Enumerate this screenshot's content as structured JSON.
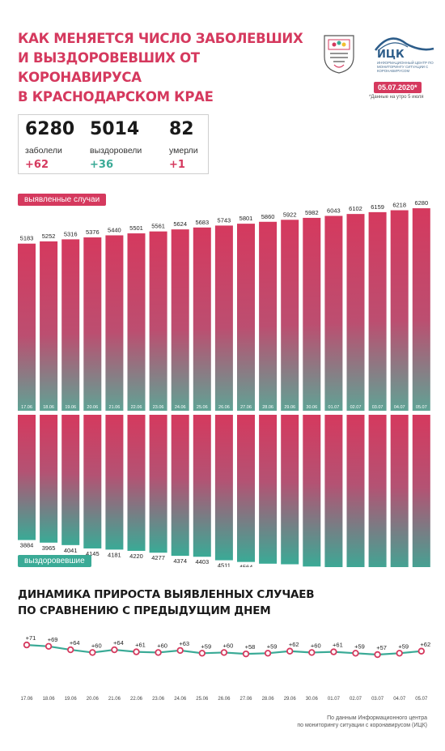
{
  "header": {
    "title_lines": [
      "Как меняется число заболевших",
      "и выздоровевших от коронавируса",
      "в Краснодарском крае"
    ],
    "logo_name": "ИЦК",
    "logo_subtitle": "Информационный центр по мониторингу ситуации с коронавирусом",
    "date": "05.07.2020*",
    "date_note": "*Данные на утро 5 июля"
  },
  "stats": {
    "cases": {
      "value": "6280",
      "label": "заболели",
      "delta": "+62"
    },
    "recovered": {
      "value": "5014",
      "label": "выздоровели",
      "delta": "+36"
    },
    "deaths": {
      "value": "82",
      "label": "умерли",
      "delta": "+1"
    }
  },
  "labels": {
    "detected": "выявленные случаи",
    "recovered": "выздоровевшие",
    "subtitle_lines": [
      "Динамика прироста выявленных случаев",
      "по сравнению с предыдущим днем"
    ],
    "source_lines": [
      "По данным Информационного центра",
      "по мониторингу ситуации с коронавирусом (ИЦК)"
    ]
  },
  "colors": {
    "detected": "#d5395e",
    "recovered": "#3aaa96",
    "line": "#3aaa96",
    "dot": "#d5395e"
  },
  "chart_data": [
    {
      "type": "bar",
      "categories": [
        "17.06",
        "18.06",
        "19.06",
        "20.06",
        "21.06",
        "22.06",
        "23.06",
        "24.06",
        "25.06",
        "26.06",
        "27.06",
        "28.06",
        "29.06",
        "30.06",
        "01.07",
        "02.07",
        "03.07",
        "04.07",
        "05.07"
      ],
      "series": [
        {
          "name": "выявленные случаи",
          "values": [
            5183,
            5252,
            5316,
            5376,
            5440,
            5501,
            5561,
            5624,
            5683,
            5743,
            5801,
            5860,
            5922,
            5982,
            6043,
            6102,
            6159,
            6218,
            6280
          ]
        },
        {
          "name": "выздоровевшие",
          "values": [
            3884,
            3965,
            4041,
            4145,
            4181,
            4220,
            4277,
            4374,
            4403,
            4511,
            4564,
            4618,
            4636,
            4706,
            4793,
            4827,
            4911,
            4978,
            5014
          ]
        }
      ]
    },
    {
      "type": "line",
      "title": "Динамика прироста выявленных случаев по сравнению с предыдущим днем",
      "categories": [
        "17.06",
        "18.06",
        "19.06",
        "20.06",
        "21.06",
        "22.06",
        "23.06",
        "24.06",
        "25.06",
        "26.06",
        "27.06",
        "28.06",
        "29.06",
        "30.06",
        "01.07",
        "02.07",
        "03.07",
        "04.07",
        "05.07"
      ],
      "values": [
        71,
        69,
        64,
        60,
        64,
        61,
        60,
        63,
        59,
        60,
        58,
        59,
        62,
        60,
        61,
        59,
        57,
        59,
        62
      ],
      "value_prefix": "+"
    }
  ]
}
